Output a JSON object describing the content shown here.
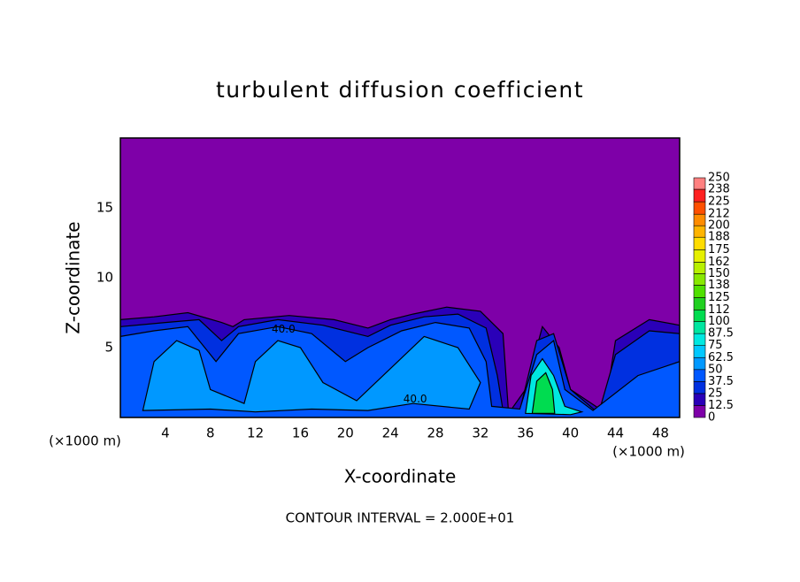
{
  "chart_data": {
    "type": "contour",
    "title": "turbulent diffusion coefficient",
    "xlabel": "X-coordinate",
    "ylabel": "Z-coordinate",
    "x_unit_labels": [
      "(×1000 m)",
      "(×1000 m)"
    ],
    "footer": "CONTOUR INTERVAL = 2.000E+01",
    "contour_labels": [
      "40.0",
      "40.0"
    ],
    "xlim": [
      0,
      49.7
    ],
    "ylim": [
      0,
      20
    ],
    "xticks": [
      4,
      8,
      12,
      16,
      20,
      24,
      28,
      32,
      36,
      40,
      44,
      48
    ],
    "yticks": [
      5,
      10,
      15
    ],
    "colorbar": {
      "levels": [
        0,
        12.5,
        25,
        37.5,
        50,
        62.5,
        75,
        87.5,
        100,
        112,
        125,
        138,
        150,
        162,
        175,
        188,
        200,
        212,
        225,
        238,
        250
      ],
      "colors": [
        "#7e00a8",
        "#2a00b8",
        "#0030e0",
        "#0058ff",
        "#0098ff",
        "#00c8ff",
        "#00e8e0",
        "#00e6a0",
        "#00dc50",
        "#20d020",
        "#50e000",
        "#88e800",
        "#b8f000",
        "#e6f000",
        "#ffdc00",
        "#ffb400",
        "#ff8c00",
        "#ff5000",
        "#ff2020",
        "#ff8080"
      ]
    }
  }
}
